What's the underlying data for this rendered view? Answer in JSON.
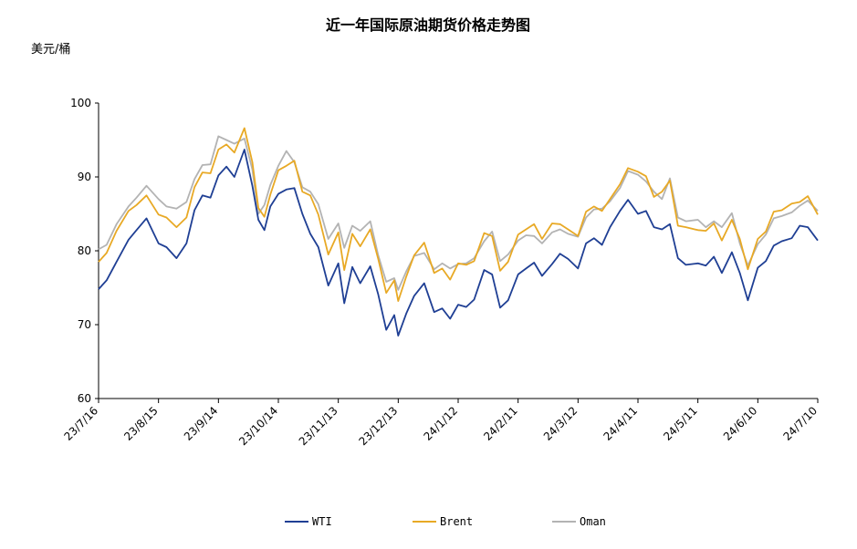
{
  "chart_data": {
    "type": "line",
    "title": "近一年国际原油期货价格走势图",
    "ylabel": "美元/桶",
    "xlabel": "",
    "ylim": [
      60,
      100
    ],
    "yticks": [
      60,
      70,
      80,
      90,
      100
    ],
    "xtick_labels": [
      "23/7/16",
      "23/8/15",
      "23/9/14",
      "23/10/14",
      "23/11/13",
      "23/12/13",
      "24/1/12",
      "24/2/11",
      "24/3/12",
      "24/4/11",
      "24/5/11",
      "24/6/10",
      "24/7/10"
    ],
    "grid": false,
    "legend_position": "bottom",
    "colors": {
      "WTI": "#1f3f94",
      "Brent": "#e8a925",
      "Oman": "#b3b3b3"
    },
    "series": [
      {
        "name": "WTI",
        "points": [
          [
            "2023-07-16",
            74.8
          ],
          [
            "2023-07-20",
            76.0
          ],
          [
            "2023-07-25",
            78.5
          ],
          [
            "2023-07-31",
            81.5
          ],
          [
            "2023-08-04",
            82.8
          ],
          [
            "2023-08-09",
            84.4
          ],
          [
            "2023-08-15",
            81.0
          ],
          [
            "2023-08-19",
            80.5
          ],
          [
            "2023-08-24",
            79.0
          ],
          [
            "2023-08-29",
            81.0
          ],
          [
            "2023-09-02",
            85.5
          ],
          [
            "2023-09-06",
            87.5
          ],
          [
            "2023-09-10",
            87.2
          ],
          [
            "2023-09-14",
            90.2
          ],
          [
            "2023-09-18",
            91.4
          ],
          [
            "2023-09-22",
            90.0
          ],
          [
            "2023-09-27",
            93.7
          ],
          [
            "2023-10-01",
            88.8
          ],
          [
            "2023-10-04",
            84.2
          ],
          [
            "2023-10-07",
            82.8
          ],
          [
            "2023-10-10",
            86.0
          ],
          [
            "2023-10-14",
            87.7
          ],
          [
            "2023-10-18",
            88.3
          ],
          [
            "2023-10-22",
            88.5
          ],
          [
            "2023-10-26",
            85.0
          ],
          [
            "2023-10-30",
            82.3
          ],
          [
            "2023-11-03",
            80.5
          ],
          [
            "2023-11-08",
            75.3
          ],
          [
            "2023-11-13",
            78.3
          ],
          [
            "2023-11-16",
            72.9
          ],
          [
            "2023-11-20",
            77.8
          ],
          [
            "2023-11-24",
            75.6
          ],
          [
            "2023-11-29",
            77.9
          ],
          [
            "2023-12-03",
            74.1
          ],
          [
            "2023-12-07",
            69.3
          ],
          [
            "2023-12-11",
            71.3
          ],
          [
            "2023-12-13",
            68.5
          ],
          [
            "2023-12-17",
            71.5
          ],
          [
            "2023-12-21",
            73.9
          ],
          [
            "2023-12-26",
            75.6
          ],
          [
            "2023-12-31",
            71.7
          ],
          [
            "2024-01-04",
            72.2
          ],
          [
            "2024-01-08",
            70.8
          ],
          [
            "2024-01-12",
            72.7
          ],
          [
            "2024-01-16",
            72.4
          ],
          [
            "2024-01-20",
            73.4
          ],
          [
            "2024-01-25",
            77.4
          ],
          [
            "2024-01-29",
            76.8
          ],
          [
            "2024-02-02",
            72.3
          ],
          [
            "2024-02-06",
            73.3
          ],
          [
            "2024-02-11",
            76.8
          ],
          [
            "2024-02-15",
            77.6
          ],
          [
            "2024-02-19",
            78.4
          ],
          [
            "2024-02-23",
            76.6
          ],
          [
            "2024-02-28",
            78.2
          ],
          [
            "2024-03-03",
            79.6
          ],
          [
            "2024-03-07",
            78.9
          ],
          [
            "2024-03-12",
            77.6
          ],
          [
            "2024-03-16",
            81.0
          ],
          [
            "2024-03-20",
            81.7
          ],
          [
            "2024-03-24",
            80.8
          ],
          [
            "2024-03-28",
            83.2
          ],
          [
            "2024-04-02",
            85.4
          ],
          [
            "2024-04-06",
            86.9
          ],
          [
            "2024-04-11",
            85.0
          ],
          [
            "2024-04-15",
            85.4
          ],
          [
            "2024-04-19",
            83.2
          ],
          [
            "2024-04-23",
            82.9
          ],
          [
            "2024-04-27",
            83.6
          ],
          [
            "2024-05-01",
            79.0
          ],
          [
            "2024-05-05",
            78.1
          ],
          [
            "2024-05-11",
            78.3
          ],
          [
            "2024-05-15",
            78.0
          ],
          [
            "2024-05-19",
            79.2
          ],
          [
            "2024-05-23",
            77.0
          ],
          [
            "2024-05-28",
            79.8
          ],
          [
            "2024-06-01",
            77.0
          ],
          [
            "2024-06-05",
            73.3
          ],
          [
            "2024-06-10",
            77.7
          ],
          [
            "2024-06-14",
            78.6
          ],
          [
            "2024-06-18",
            80.7
          ],
          [
            "2024-06-22",
            81.3
          ],
          [
            "2024-06-27",
            81.7
          ],
          [
            "2024-07-01",
            83.4
          ],
          [
            "2024-07-05",
            83.2
          ],
          [
            "2024-07-10",
            81.4
          ]
        ]
      },
      {
        "name": "Brent",
        "points": [
          [
            "2023-07-16",
            78.5
          ],
          [
            "2023-07-20",
            79.7
          ],
          [
            "2023-07-25",
            82.7
          ],
          [
            "2023-07-31",
            85.4
          ],
          [
            "2023-08-04",
            86.2
          ],
          [
            "2023-08-09",
            87.5
          ],
          [
            "2023-08-15",
            84.9
          ],
          [
            "2023-08-19",
            84.5
          ],
          [
            "2023-08-24",
            83.2
          ],
          [
            "2023-08-29",
            84.5
          ],
          [
            "2023-09-02",
            88.6
          ],
          [
            "2023-09-06",
            90.6
          ],
          [
            "2023-09-10",
            90.5
          ],
          [
            "2023-09-14",
            93.7
          ],
          [
            "2023-09-18",
            94.4
          ],
          [
            "2023-09-22",
            93.3
          ],
          [
            "2023-09-27",
            96.6
          ],
          [
            "2023-10-01",
            92.0
          ],
          [
            "2023-10-04",
            85.8
          ],
          [
            "2023-10-07",
            84.6
          ],
          [
            "2023-10-10",
            87.6
          ],
          [
            "2023-10-14",
            90.9
          ],
          [
            "2023-10-18",
            91.5
          ],
          [
            "2023-10-22",
            92.2
          ],
          [
            "2023-10-26",
            88.0
          ],
          [
            "2023-10-30",
            87.5
          ],
          [
            "2023-11-03",
            84.9
          ],
          [
            "2023-11-08",
            79.5
          ],
          [
            "2023-11-13",
            82.5
          ],
          [
            "2023-11-16",
            77.4
          ],
          [
            "2023-11-20",
            82.3
          ],
          [
            "2023-11-24",
            80.6
          ],
          [
            "2023-11-29",
            82.9
          ],
          [
            "2023-12-03",
            78.9
          ],
          [
            "2023-12-07",
            74.3
          ],
          [
            "2023-12-11",
            76.0
          ],
          [
            "2023-12-13",
            73.2
          ],
          [
            "2023-12-17",
            76.5
          ],
          [
            "2023-12-21",
            79.4
          ],
          [
            "2023-12-26",
            81.1
          ],
          [
            "2023-12-31",
            77.0
          ],
          [
            "2024-01-04",
            77.6
          ],
          [
            "2024-01-08",
            76.1
          ],
          [
            "2024-01-12",
            78.3
          ],
          [
            "2024-01-16",
            78.1
          ],
          [
            "2024-01-20",
            78.6
          ],
          [
            "2024-01-25",
            82.4
          ],
          [
            "2024-01-29",
            82.0
          ],
          [
            "2024-02-02",
            77.3
          ],
          [
            "2024-02-06",
            78.5
          ],
          [
            "2024-02-11",
            82.2
          ],
          [
            "2024-02-15",
            82.9
          ],
          [
            "2024-02-19",
            83.6
          ],
          [
            "2024-02-23",
            81.6
          ],
          [
            "2024-02-28",
            83.7
          ],
          [
            "2024-03-03",
            83.6
          ],
          [
            "2024-03-07",
            82.9
          ],
          [
            "2024-03-12",
            82.0
          ],
          [
            "2024-03-16",
            85.3
          ],
          [
            "2024-03-20",
            86.0
          ],
          [
            "2024-03-24",
            85.4
          ],
          [
            "2024-03-28",
            87.0
          ],
          [
            "2024-04-02",
            89.0
          ],
          [
            "2024-04-06",
            91.2
          ],
          [
            "2024-04-11",
            90.7
          ],
          [
            "2024-04-15",
            90.1
          ],
          [
            "2024-04-19",
            87.3
          ],
          [
            "2024-04-23",
            88.0
          ],
          [
            "2024-04-27",
            89.5
          ],
          [
            "2024-05-01",
            83.4
          ],
          [
            "2024-05-05",
            83.2
          ],
          [
            "2024-05-11",
            82.8
          ],
          [
            "2024-05-15",
            82.7
          ],
          [
            "2024-05-19",
            83.7
          ],
          [
            "2024-05-23",
            81.4
          ],
          [
            "2024-05-28",
            84.2
          ],
          [
            "2024-06-01",
            81.6
          ],
          [
            "2024-06-05",
            77.5
          ],
          [
            "2024-06-10",
            81.6
          ],
          [
            "2024-06-14",
            82.6
          ],
          [
            "2024-06-18",
            85.3
          ],
          [
            "2024-06-22",
            85.5
          ],
          [
            "2024-06-27",
            86.4
          ],
          [
            "2024-07-01",
            86.6
          ],
          [
            "2024-07-05",
            87.4
          ],
          [
            "2024-07-10",
            84.9
          ]
        ]
      },
      {
        "name": "Oman",
        "points": [
          [
            "2023-07-16",
            80.2
          ],
          [
            "2023-07-20",
            80.8
          ],
          [
            "2023-07-25",
            83.6
          ],
          [
            "2023-07-31",
            86.0
          ],
          [
            "2023-08-04",
            87.2
          ],
          [
            "2023-08-09",
            88.8
          ],
          [
            "2023-08-15",
            87.0
          ],
          [
            "2023-08-19",
            86.0
          ],
          [
            "2023-08-24",
            85.7
          ],
          [
            "2023-08-29",
            86.6
          ],
          [
            "2023-09-02",
            89.7
          ],
          [
            "2023-09-06",
            91.6
          ],
          [
            "2023-09-10",
            91.7
          ],
          [
            "2023-09-14",
            95.5
          ],
          [
            "2023-09-18",
            95.0
          ],
          [
            "2023-09-22",
            94.5
          ],
          [
            "2023-09-27",
            95.2
          ],
          [
            "2023-10-01",
            91.0
          ],
          [
            "2023-10-04",
            85.0
          ],
          [
            "2023-10-07",
            86.2
          ],
          [
            "2023-10-10",
            88.9
          ],
          [
            "2023-10-14",
            91.5
          ],
          [
            "2023-10-18",
            93.5
          ],
          [
            "2023-10-22",
            92.0
          ],
          [
            "2023-10-26",
            88.6
          ],
          [
            "2023-10-30",
            88.0
          ],
          [
            "2023-11-03",
            86.3
          ],
          [
            "2023-11-08",
            81.6
          ],
          [
            "2023-11-13",
            83.7
          ],
          [
            "2023-11-16",
            80.4
          ],
          [
            "2023-11-20",
            83.4
          ],
          [
            "2023-11-24",
            82.7
          ],
          [
            "2023-11-29",
            84.0
          ],
          [
            "2023-12-03",
            79.4
          ],
          [
            "2023-12-07",
            75.8
          ],
          [
            "2023-12-11",
            76.3
          ],
          [
            "2023-12-13",
            74.7
          ],
          [
            "2023-12-17",
            77.2
          ],
          [
            "2023-12-21",
            79.3
          ],
          [
            "2023-12-26",
            79.7
          ],
          [
            "2023-12-31",
            77.5
          ],
          [
            "2024-01-04",
            78.3
          ],
          [
            "2024-01-08",
            77.6
          ],
          [
            "2024-01-12",
            78.2
          ],
          [
            "2024-01-16",
            78.3
          ],
          [
            "2024-01-20",
            79.0
          ],
          [
            "2024-01-25",
            81.3
          ],
          [
            "2024-01-29",
            82.6
          ],
          [
            "2024-02-02",
            78.6
          ],
          [
            "2024-02-06",
            79.5
          ],
          [
            "2024-02-11",
            81.4
          ],
          [
            "2024-02-15",
            82.1
          ],
          [
            "2024-02-19",
            82.0
          ],
          [
            "2024-02-23",
            81.0
          ],
          [
            "2024-02-28",
            82.5
          ],
          [
            "2024-03-03",
            82.9
          ],
          [
            "2024-03-07",
            82.3
          ],
          [
            "2024-03-12",
            81.9
          ],
          [
            "2024-03-16",
            84.5
          ],
          [
            "2024-03-20",
            85.6
          ],
          [
            "2024-03-24",
            85.7
          ],
          [
            "2024-03-28",
            86.7
          ],
          [
            "2024-04-02",
            88.5
          ],
          [
            "2024-04-06",
            90.8
          ],
          [
            "2024-04-11",
            90.3
          ],
          [
            "2024-04-15",
            89.4
          ],
          [
            "2024-04-19",
            88.0
          ],
          [
            "2024-04-23",
            87.0
          ],
          [
            "2024-04-27",
            89.8
          ],
          [
            "2024-05-01",
            84.5
          ],
          [
            "2024-05-05",
            84.0
          ],
          [
            "2024-05-11",
            84.2
          ],
          [
            "2024-05-15",
            83.2
          ],
          [
            "2024-05-19",
            84.0
          ],
          [
            "2024-05-23",
            83.2
          ],
          [
            "2024-05-28",
            85.1
          ],
          [
            "2024-06-01",
            81.0
          ],
          [
            "2024-06-05",
            78.0
          ],
          [
            "2024-06-10",
            80.9
          ],
          [
            "2024-06-14",
            82.2
          ],
          [
            "2024-06-18",
            84.4
          ],
          [
            "2024-06-22",
            84.7
          ],
          [
            "2024-06-27",
            85.2
          ],
          [
            "2024-07-01",
            86.1
          ],
          [
            "2024-07-05",
            86.8
          ],
          [
            "2024-07-10",
            85.4
          ]
        ]
      }
    ]
  }
}
